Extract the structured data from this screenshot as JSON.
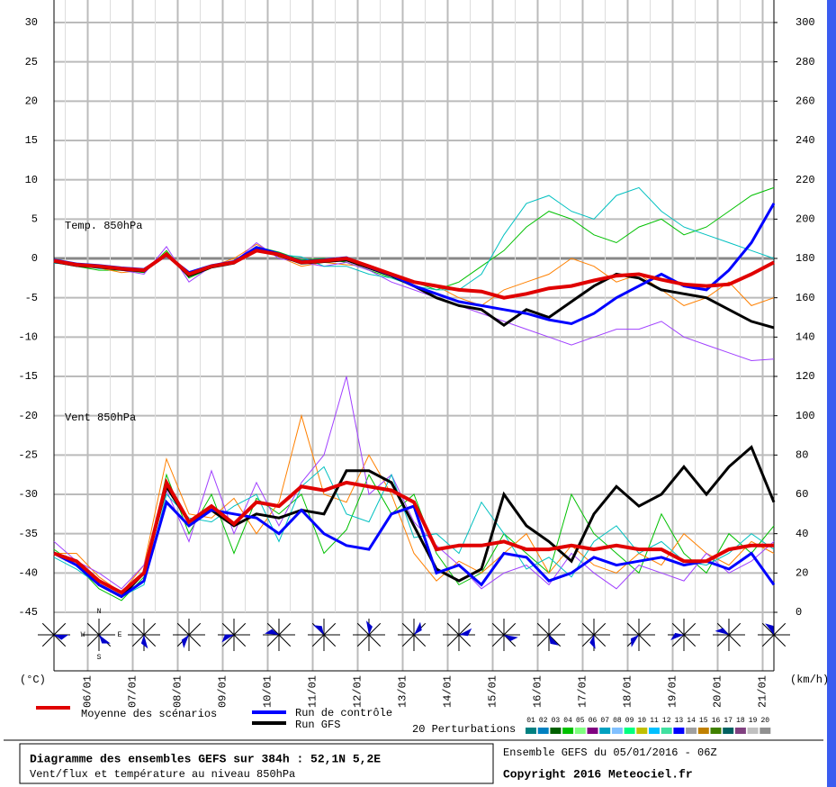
{
  "chart_data": {
    "type": "line",
    "title": "Diagramme des ensembles GEFS sur 384h : 52,1N 5,2E",
    "subtitle": "Vent/flux et température au niveau 850hPa",
    "run_info": "Ensemble GEFS du 05/01/2016 - 06Z",
    "copyright": "Copyright 2016 Meteociel.fr",
    "temp_label": "Temp. 850hPa",
    "wind_label": "Vent 850hPa",
    "y_unit": "(°C)",
    "y2_unit": "(km/h)",
    "compass": [
      "N",
      "W",
      "E",
      "S"
    ],
    "grid": true,
    "x": [
      0,
      12,
      24,
      36,
      48,
      60,
      72,
      84,
      96,
      108,
      120,
      132,
      144,
      156,
      168,
      180,
      192,
      204,
      216,
      228,
      240,
      252,
      264,
      276,
      288,
      300,
      312,
      324,
      336,
      348,
      360,
      372,
      384
    ],
    "xlim": [
      0,
      384
    ],
    "xticks": [
      {
        "value": 18,
        "label": "06/01"
      },
      {
        "value": 42,
        "label": "07/01"
      },
      {
        "value": 66,
        "label": "08/01"
      },
      {
        "value": 90,
        "label": "09/01"
      },
      {
        "value": 114,
        "label": "10/01"
      },
      {
        "value": 138,
        "label": "11/01"
      },
      {
        "value": 162,
        "label": "12/01"
      },
      {
        "value": 186,
        "label": "13/01"
      },
      {
        "value": 210,
        "label": "14/01"
      },
      {
        "value": 234,
        "label": "15/01"
      },
      {
        "value": 258,
        "label": "16/01"
      },
      {
        "value": 282,
        "label": "17/01"
      },
      {
        "value": 306,
        "label": "18/01"
      },
      {
        "value": 330,
        "label": "19/01"
      },
      {
        "value": 354,
        "label": "20/01"
      },
      {
        "value": 378,
        "label": "21/01"
      }
    ],
    "ylim": [
      -45,
      30
    ],
    "yticks": [
      -45,
      -40,
      -35,
      -30,
      -25,
      -20,
      -15,
      -10,
      -5,
      0,
      5,
      10,
      15,
      20,
      25,
      30
    ],
    "y2lim": [
      0,
      300
    ],
    "y2ticks": [
      0,
      20,
      40,
      60,
      80,
      100,
      120,
      140,
      160,
      180,
      200,
      220,
      240,
      260,
      280,
      300
    ],
    "perturbations_label": "20 Perturbations",
    "perturbation_legend": [
      {
        "label": "01",
        "color": "#008080"
      },
      {
        "label": "02",
        "color": "#0080c0"
      },
      {
        "label": "03",
        "color": "#006000"
      },
      {
        "label": "04",
        "color": "#00c000"
      },
      {
        "label": "05",
        "color": "#80ff80"
      },
      {
        "label": "06",
        "color": "#800080"
      },
      {
        "label": "07",
        "color": "#00a0c0"
      },
      {
        "label": "08",
        "color": "#80c0ff"
      },
      {
        "label": "09",
        "color": "#00ff80"
      },
      {
        "label": "10",
        "color": "#c0c000"
      },
      {
        "label": "11",
        "color": "#00c0ff"
      },
      {
        "label": "12",
        "color": "#40e0a0"
      },
      {
        "label": "13",
        "color": "#0000ff"
      },
      {
        "label": "14",
        "color": "#a0a0a0"
      },
      {
        "label": "15",
        "color": "#c08000"
      },
      {
        "label": "16",
        "color": "#408000"
      },
      {
        "label": "17",
        "color": "#006060"
      },
      {
        "label": "18",
        "color": "#804080"
      },
      {
        "label": "19",
        "color": "#c0c0c0"
      },
      {
        "label": "20",
        "color": "#909090"
      }
    ],
    "series": [
      {
        "color": "#00c000",
        "temperature": [
          -0.5,
          -1,
          -1.5,
          -1.5,
          -1.8,
          1,
          -2.5,
          -1.2,
          -0.3,
          1.5,
          0.8,
          -0.2,
          0,
          -0.5,
          -1.5,
          -2.5,
          -3,
          -4,
          -3,
          -1,
          1,
          4,
          6,
          5,
          3,
          2,
          4,
          5,
          3,
          4,
          6,
          8,
          9
        ],
        "wind": [
          32,
          24,
          12,
          6,
          18,
          70,
          40,
          60,
          30,
          58,
          50,
          60,
          30,
          42,
          70,
          50,
          60,
          30,
          14,
          20,
          40,
          30,
          20,
          60,
          40,
          30,
          20,
          50,
          30,
          20,
          40,
          30,
          44
        ]
      },
      {
        "color": "#ff8000",
        "temperature": [
          -0.5,
          -0.6,
          -1.2,
          -1.8,
          -1.5,
          0.8,
          -2,
          -1,
          0,
          1.8,
          0.2,
          -1,
          -0.5,
          -0.8,
          -1,
          -2,
          -3,
          -3.5,
          -5,
          -6,
          -4,
          -3,
          -2,
          0,
          -1,
          -3,
          -2,
          -4,
          -6,
          -5,
          -3,
          -6,
          -5
        ],
        "wind": [
          30,
          30,
          18,
          10,
          24,
          78,
          50,
          48,
          58,
          40,
          56,
          100,
          60,
          56,
          80,
          60,
          30,
          16,
          26,
          20,
          30,
          40,
          20,
          34,
          24,
          20,
          30,
          24,
          40,
          30,
          24,
          36,
          30
        ]
      },
      {
        "color": "#a040ff",
        "temperature": [
          -0.3,
          -1,
          -1,
          -1.5,
          -2,
          1.5,
          -3,
          -1,
          -0.5,
          2,
          0,
          -0.5,
          -1,
          -0.5,
          -1.5,
          -3,
          -4,
          -5,
          -6,
          -7,
          -8,
          -9,
          -10,
          -11,
          -10,
          -9,
          -9,
          -8,
          -10,
          -11,
          -12,
          -13,
          -12.8
        ],
        "wind": [
          36,
          26,
          20,
          12,
          24,
          62,
          36,
          72,
          40,
          66,
          44,
          66,
          80,
          120,
          60,
          70,
          46,
          34,
          24,
          12,
          20,
          24,
          14,
          30,
          20,
          12,
          24,
          20,
          16,
          30,
          20,
          26,
          36
        ]
      },
      {
        "color": "#00c0c0",
        "temperature": [
          -0.6,
          -0.8,
          -1.3,
          -1.2,
          -1.7,
          0.3,
          -2.2,
          -0.8,
          -0.6,
          1.2,
          0.5,
          0.2,
          -1,
          -1,
          -2,
          -2.5,
          -3.5,
          -4,
          -4,
          -2,
          3,
          7,
          8,
          6,
          5,
          8,
          9,
          6,
          4,
          3,
          2,
          1,
          0
        ],
        "wind": [
          28,
          22,
          14,
          8,
          14,
          60,
          48,
          46,
          54,
          60,
          36,
          64,
          74,
          50,
          46,
          70,
          38,
          40,
          30,
          56,
          40,
          22,
          28,
          18,
          36,
          44,
          30,
          36,
          26,
          24,
          30,
          40,
          32
        ]
      },
      {
        "name": "Run GFS",
        "color": "#000000",
        "temperature": [
          -0.4,
          -0.9,
          -1.1,
          -1.4,
          -1.6,
          0.6,
          -2.2,
          -1.1,
          -0.6,
          1.2,
          0.4,
          -0.6,
          -0.4,
          -0.2,
          -1.2,
          -2.2,
          -3.5,
          -5,
          -6,
          -6.5,
          -8.5,
          -6.5,
          -7.5,
          -5.5,
          -3.5,
          -2,
          -2.5,
          -4,
          -4.5,
          -5,
          -6.5,
          -8,
          -8.8
        ],
        "wind": [
          30,
          26,
          14,
          8,
          20,
          64,
          46,
          52,
          44,
          50,
          48,
          52,
          50,
          72,
          72,
          66,
          44,
          22,
          16,
          22,
          60,
          44,
          36,
          26,
          50,
          64,
          54,
          60,
          74,
          60,
          74,
          84,
          56
        ]
      },
      {
        "name": "Run de contrôle",
        "color": "#0000ff",
        "temperature": [
          -0.2,
          -0.7,
          -0.9,
          -1.2,
          -1.4,
          0.4,
          -1.8,
          -0.9,
          -0.4,
          1.4,
          0.6,
          -0.4,
          -0.2,
          0.1,
          -1.1,
          -2.1,
          -3.5,
          -4.5,
          -5.5,
          -6,
          -6.5,
          -7,
          -7.8,
          -8.3,
          -7,
          -5,
          -3.5,
          -2,
          -3.5,
          -4,
          -1.5,
          2,
          7
        ],
        "wind": [
          30,
          24,
          14,
          8,
          16,
          56,
          44,
          52,
          50,
          48,
          40,
          52,
          40,
          34,
          32,
          50,
          54,
          20,
          24,
          14,
          30,
          28,
          16,
          20,
          28,
          24,
          26,
          28,
          24,
          26,
          22,
          30,
          14
        ]
      },
      {
        "name": "Moyenne des scénarios",
        "color": "#e00000",
        "temperature": [
          -0.3,
          -0.8,
          -1,
          -1.3,
          -1.5,
          0.5,
          -2,
          -1,
          -0.5,
          1,
          0.5,
          -0.5,
          -0.3,
          0,
          -1,
          -2,
          -3,
          -3.5,
          -4,
          -4.2,
          -5,
          -4.5,
          -3.8,
          -3.5,
          -2.8,
          -2.2,
          -2,
          -2.7,
          -3.3,
          -3.5,
          -3.3,
          -2,
          -0.5
        ],
        "wind": [
          30,
          26,
          16,
          10,
          20,
          66,
          46,
          54,
          45,
          56,
          54,
          64,
          62,
          66,
          64,
          62,
          56,
          32,
          34,
          34,
          36,
          32,
          32,
          34,
          32,
          34,
          32,
          32,
          26,
          26,
          32,
          34,
          34
        ]
      }
    ]
  }
}
